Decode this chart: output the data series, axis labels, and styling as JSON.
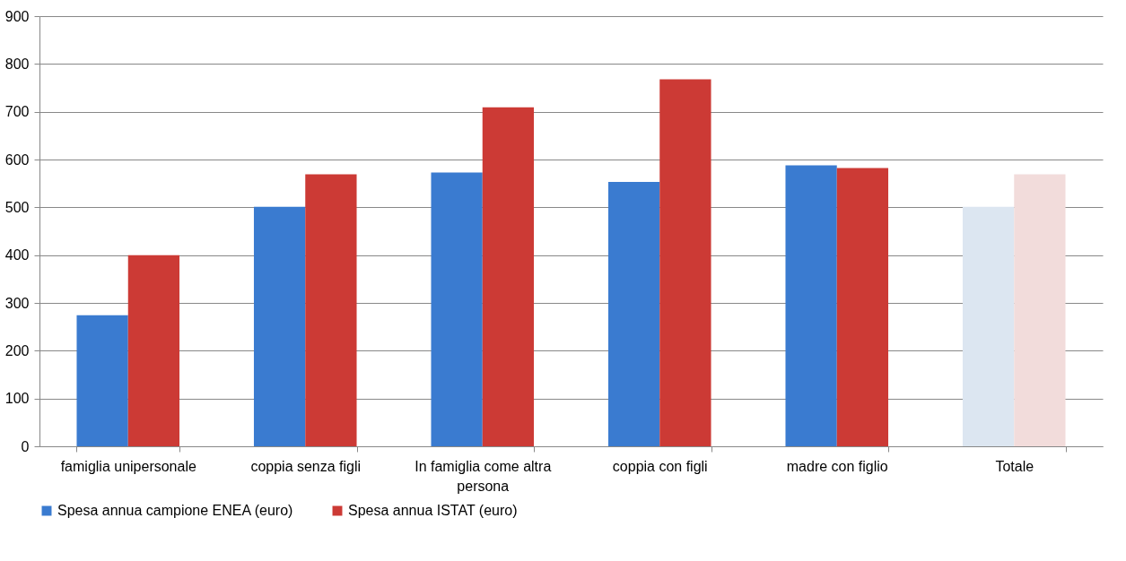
{
  "chart_data": {
    "type": "bar",
    "categories": [
      "famiglia unipersonale",
      "coppia senza figli",
      "In famiglia  come altra persona",
      "coppia con figli",
      "madre con figlio",
      "Totale"
    ],
    "series": [
      {
        "name": "Spesa annua campione ENEA (euro)",
        "color": "#3a7bd0",
        "colors": [
          "#3a7bd0",
          "#3a7bd0",
          "#3a7bd0",
          "#3a7bd0",
          "#3a7bd0",
          "#dce6f1"
        ],
        "values": [
          274,
          501,
          573,
          553,
          588,
          501
        ]
      },
      {
        "name": "Spesa annua ISTAT (euro)",
        "color": "#cc3a35",
        "colors": [
          "#cc3a35",
          "#cc3a35",
          "#cc3a35",
          "#cc3a35",
          "#cc3a35",
          "#f2dcdb"
        ],
        "values": [
          400,
          569,
          709,
          768,
          582,
          569
        ]
      }
    ],
    "ylim": [
      0,
      900
    ],
    "yticks": [
      0,
      100,
      200,
      300,
      400,
      500,
      600,
      700,
      800,
      900
    ],
    "grid": "y",
    "legend": "bottom"
  }
}
